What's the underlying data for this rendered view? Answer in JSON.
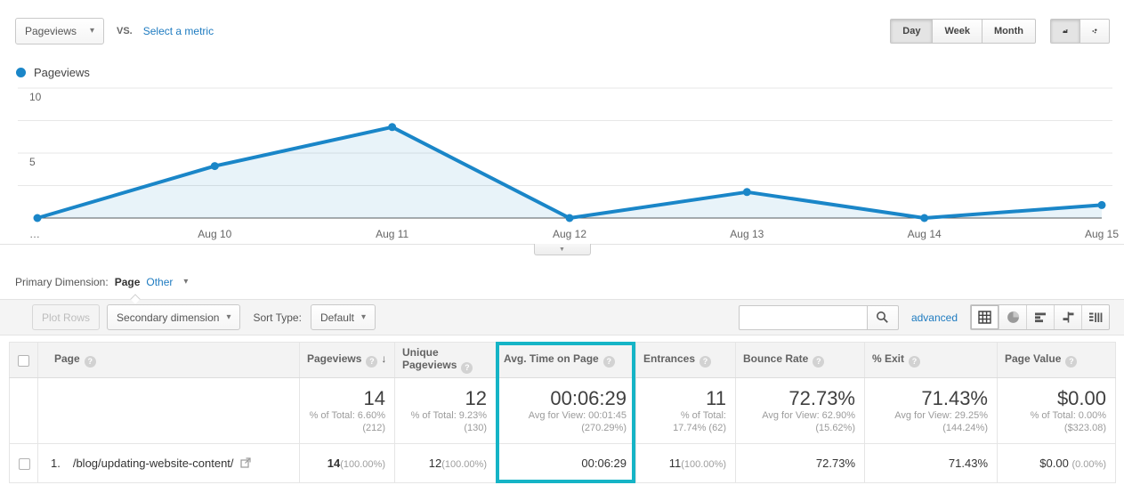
{
  "colors": {
    "series_blue": "#1a86c8",
    "link_blue": "#1e7bc0",
    "highlight_teal": "#15b4c6"
  },
  "metric_selector": {
    "selected": "Pageviews",
    "vs_label": "vs.",
    "select_metric_label": "Select a metric"
  },
  "granularity": {
    "options": [
      "Day",
      "Week",
      "Month"
    ],
    "selected": "Day"
  },
  "legend": {
    "label": "Pageviews"
  },
  "chart_data": {
    "type": "line",
    "title": "Pageviews",
    "x": [
      "…",
      "Aug 10",
      "Aug 11",
      "Aug 12",
      "Aug 13",
      "Aug 14",
      "Aug 15"
    ],
    "values": [
      0,
      4,
      7,
      0,
      2,
      0,
      1
    ],
    "ylim": [
      0,
      10
    ],
    "ytick_labels": [
      5,
      10
    ],
    "gridlines": [
      2.5,
      5,
      7.5,
      10
    ],
    "series_color": "#1a86c8",
    "area_fill": "rgba(26,134,200,0.10)",
    "legend_position": "top-left"
  },
  "primary_dimension": {
    "label": "Primary Dimension:",
    "selected": "Page",
    "other_label": "Other"
  },
  "toolbar": {
    "plot_rows_label": "Plot Rows",
    "secondary_dimension_label": "Secondary dimension",
    "sort_type_label": "Sort Type:",
    "sort_type_value": "Default",
    "search_value": "",
    "advanced_label": "advanced"
  },
  "table": {
    "columns": {
      "page": "Page",
      "pageviews": "Pageviews",
      "unique_pageviews": "Unique Pageviews",
      "avg_time": "Avg. Time on Page",
      "entrances": "Entrances",
      "bounce_rate": "Bounce Rate",
      "exit": "% Exit",
      "page_value": "Page Value"
    },
    "summary": {
      "pageviews": {
        "value": "14",
        "sub1": "% of Total: 6.60%",
        "sub2": "(212)"
      },
      "unique_pageviews": {
        "value": "12",
        "sub1": "% of Total: 9.23%",
        "sub2": "(130)"
      },
      "avg_time": {
        "value": "00:06:29",
        "sub1": "Avg for View: 00:01:45",
        "sub2": "(270.29%)"
      },
      "entrances": {
        "value": "11",
        "sub1": "% of Total:",
        "sub2": "17.74% (62)"
      },
      "bounce_rate": {
        "value": "72.73%",
        "sub1": "Avg for View: 62.90%",
        "sub2": "(15.62%)"
      },
      "exit": {
        "value": "71.43%",
        "sub1": "Avg for View: 29.25%",
        "sub2": "(144.24%)"
      },
      "page_value": {
        "value": "$0.00",
        "sub1": "% of Total: 0.00%",
        "sub2": "($323.08)"
      }
    },
    "rows": [
      {
        "index": "1.",
        "page": "/blog/updating-website-content/",
        "pageviews": "14",
        "pageviews_pct": "(100.00%)",
        "unique_pageviews": "12",
        "unique_pageviews_pct": "(100.00%)",
        "avg_time": "00:06:29",
        "entrances": "11",
        "entrances_pct": "(100.00%)",
        "bounce_rate": "72.73%",
        "exit": "71.43%",
        "page_value": "$0.00",
        "page_value_pct": "(0.00%)"
      }
    ]
  }
}
